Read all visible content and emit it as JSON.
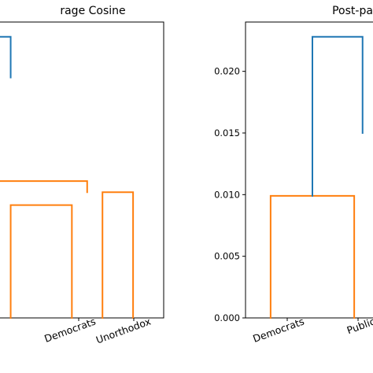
{
  "chart_data": [
    {
      "type": "dendrogram",
      "title": "rage Cosine",
      "categories": [
        "",
        "Democrats",
        "Unorthodox"
      ],
      "y_ticks": [],
      "links": [
        {
          "left_x": 0,
          "right_x": 1,
          "level": 0.61,
          "left_y": 0.0,
          "right_y": 0.0,
          "color": "#ff7f0e"
        },
        {
          "left_x": 1.5,
          "right_x": 2,
          "level": 0.68,
          "left_y": 0.0,
          "right_y": 0.0,
          "color": "#ff7f0e"
        },
        {
          "left_x": -0.2,
          "right_x": 1.25,
          "level": 0.74,
          "left_y": 0.61,
          "right_y": 0.68,
          "color": "#ff7f0e"
        },
        {
          "left_x": -0.2,
          "right_x": 0.0,
          "level": 1.52,
          "left_y": 0.74,
          "right_y": 1.3,
          "color": "#1f77b4"
        }
      ],
      "ylim": [
        0,
        1.6
      ],
      "xlim": [
        -0.2,
        2.5
      ]
    },
    {
      "type": "dendrogram",
      "title": "Post-pa",
      "categories": [
        "Democrats",
        "Public"
      ],
      "y_ticks": [
        "0.000",
        "0.005",
        "0.010",
        "0.015",
        "0.020"
      ],
      "y_tick_values": [
        0.0,
        0.005,
        0.01,
        0.015,
        0.02
      ],
      "links": [
        {
          "left_x": 0,
          "right_x": 1,
          "level": 0.0099,
          "left_y": 0.0,
          "right_y": 0.0,
          "color": "#ff7f0e"
        },
        {
          "left_x": 0.5,
          "right_x": 1.1,
          "level": 0.0228,
          "left_y": 0.0099,
          "right_y": 0.015,
          "color": "#1f77b4"
        }
      ],
      "ylim": [
        0,
        0.024
      ],
      "xlim": [
        -0.3,
        1.3
      ]
    }
  ]
}
